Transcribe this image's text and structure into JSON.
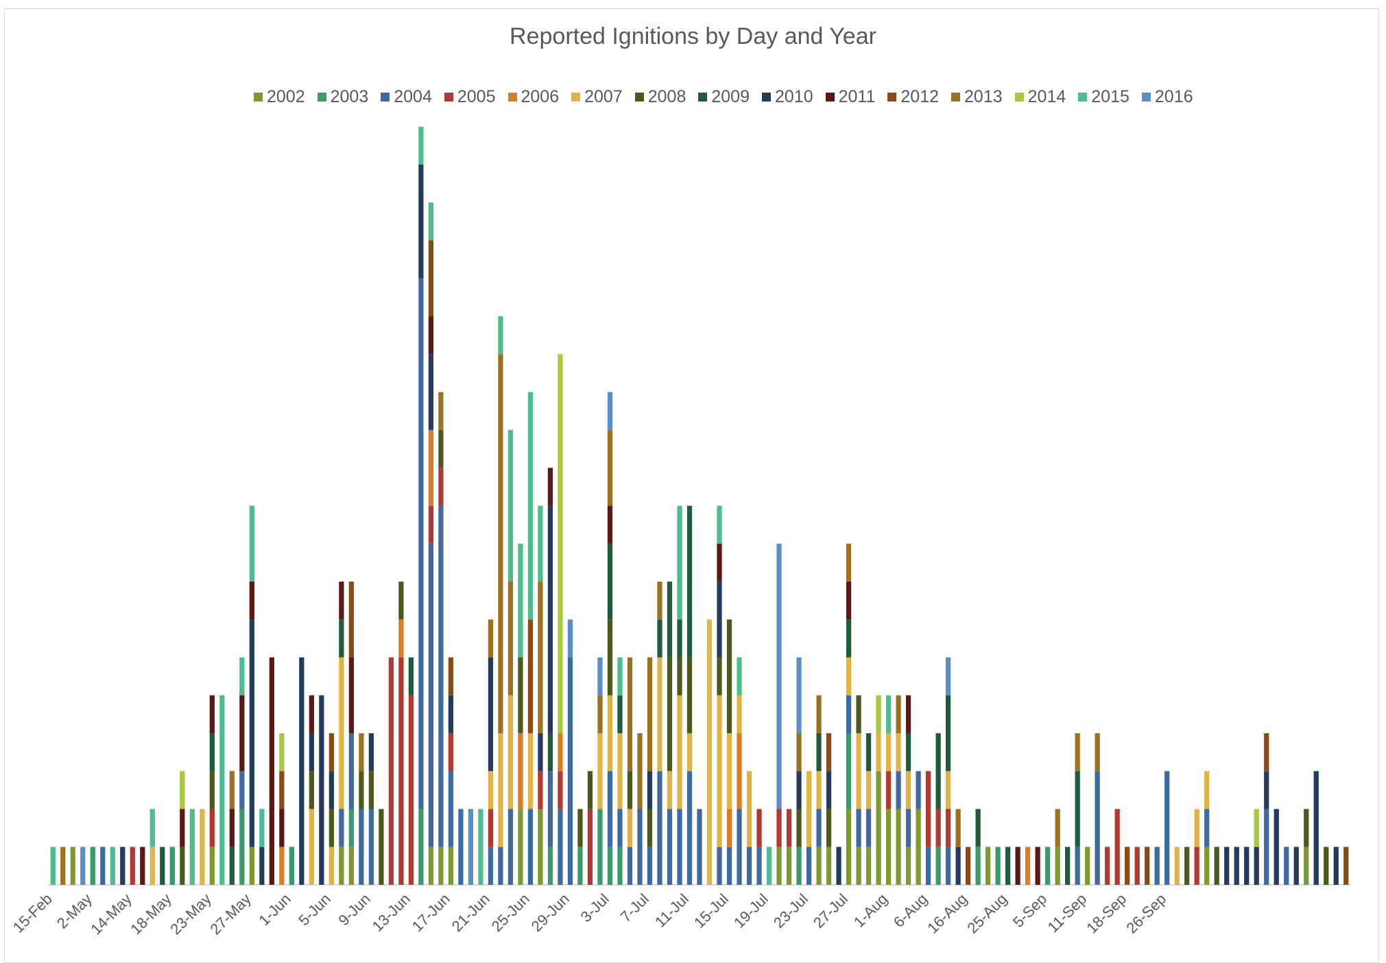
{
  "chart_data": {
    "type": "bar",
    "stacked": true,
    "title": "Reported Ignitions by Day and Year",
    "xlabel": "",
    "ylabel": "",
    "ylim": [
      0,
      19
    ],
    "grid": false,
    "legend_position": "top",
    "tick_labels": [
      "15-Feb",
      "2-May",
      "14-May",
      "18-May",
      "23-May",
      "27-May",
      "1-Jun",
      "5-Jun",
      "9-Jun",
      "13-Jun",
      "17-Jun",
      "21-Jun",
      "25-Jun",
      "29-Jun",
      "3-Jul",
      "7-Jul",
      "11-Jul",
      "15-Jul",
      "19-Jul",
      "23-Jul",
      "27-Jul",
      "1-Aug",
      "6-Aug",
      "16-Aug",
      "25-Aug",
      "5-Sep",
      "11-Sep",
      "18-Sep",
      "26-Sep"
    ],
    "tick_every": 4,
    "series_names": [
      "2002",
      "2003",
      "2004",
      "2005",
      "2006",
      "2007",
      "2008",
      "2009",
      "2010",
      "2011",
      "2012",
      "2013",
      "2014",
      "2015",
      "2016"
    ],
    "colors": [
      "#7e9a2e",
      "#3a9a6c",
      "#3f6aa1",
      "#b03a33",
      "#e07b25",
      "#e0b444",
      "#4b5a1c",
      "#1f5c3f",
      "#243b5e",
      "#5c1717",
      "#8a4b15",
      "#9a7220",
      "#a9c83b",
      "#4dbd8f",
      "#5b8ec9"
    ],
    "bars": [
      [
        [
          13,
          1
        ]
      ],
      [
        [
          11,
          1
        ]
      ],
      [
        [
          0,
          1
        ]
      ],
      [
        [
          14,
          1
        ]
      ],
      [
        [
          1,
          1
        ]
      ],
      [
        [
          2,
          1
        ]
      ],
      [
        [
          13,
          1
        ]
      ],
      [
        [
          8,
          1
        ]
      ],
      [
        [
          3,
          1
        ]
      ],
      [
        [
          9,
          1
        ]
      ],
      [
        [
          5,
          1
        ],
        [
          13,
          1
        ]
      ],
      [
        [
          7,
          1
        ]
      ],
      [
        [
          1,
          1
        ]
      ],
      [
        [
          6,
          1
        ],
        [
          9,
          1
        ],
        [
          12,
          1
        ]
      ],
      [
        [
          13,
          2
        ]
      ],
      [
        [
          5,
          2
        ]
      ],
      [
        [
          0,
          1
        ],
        [
          3,
          1
        ],
        [
          6,
          1
        ],
        [
          7,
          1
        ],
        [
          9,
          1
        ]
      ],
      [
        [
          13,
          5
        ]
      ],
      [
        [
          7,
          1
        ],
        [
          9,
          1
        ],
        [
          11,
          1
        ]
      ],
      [
        [
          1,
          2
        ],
        [
          2,
          1
        ],
        [
          9,
          2
        ],
        [
          13,
          1
        ]
      ],
      [
        [
          0,
          1
        ],
        [
          8,
          6
        ],
        [
          9,
          1
        ],
        [
          13,
          2
        ]
      ],
      [
        [
          8,
          1
        ],
        [
          13,
          1
        ]
      ],
      [
        [
          9,
          6
        ]
      ],
      [
        [
          4,
          1
        ],
        [
          9,
          1
        ],
        [
          10,
          1
        ],
        [
          12,
          1
        ]
      ],
      [
        [
          1,
          1
        ]
      ],
      [
        [
          8,
          6
        ]
      ],
      [
        [
          5,
          2
        ],
        [
          6,
          1
        ],
        [
          8,
          1
        ],
        [
          9,
          1
        ]
      ],
      [
        [
          8,
          5
        ]
      ],
      [
        [
          5,
          1
        ],
        [
          6,
          1
        ],
        [
          8,
          1
        ],
        [
          10,
          1
        ]
      ],
      [
        [
          0,
          1
        ],
        [
          2,
          1
        ],
        [
          5,
          4
        ],
        [
          7,
          1
        ],
        [
          9,
          1
        ]
      ],
      [
        [
          0,
          1
        ],
        [
          1,
          1
        ],
        [
          2,
          2
        ],
        [
          9,
          2
        ],
        [
          10,
          2
        ]
      ],
      [
        [
          2,
          2
        ],
        [
          6,
          1
        ],
        [
          11,
          1
        ]
      ],
      [
        [
          2,
          2
        ],
        [
          6,
          1
        ],
        [
          8,
          1
        ]
      ],
      [
        [
          6,
          2
        ]
      ],
      [
        [
          3,
          6
        ]
      ],
      [
        [
          3,
          6
        ],
        [
          4,
          1
        ],
        [
          6,
          1
        ]
      ],
      [
        [
          3,
          5
        ],
        [
          7,
          1
        ]
      ],
      [
        [
          1,
          2
        ],
        [
          2,
          14
        ],
        [
          8,
          3
        ],
        [
          13,
          1
        ]
      ],
      [
        [
          0,
          1
        ],
        [
          2,
          8
        ],
        [
          3,
          1
        ],
        [
          4,
          2
        ],
        [
          8,
          2
        ],
        [
          9,
          1
        ],
        [
          10,
          2
        ],
        [
          13,
          1
        ]
      ],
      [
        [
          0,
          1
        ],
        [
          2,
          9
        ],
        [
          3,
          1
        ],
        [
          6,
          1
        ],
        [
          11,
          1
        ]
      ],
      [
        [
          0,
          1
        ],
        [
          2,
          2
        ],
        [
          3,
          1
        ],
        [
          8,
          1
        ],
        [
          10,
          1
        ]
      ],
      [
        [
          2,
          2
        ]
      ],
      [
        [
          14,
          2
        ]
      ],
      [
        [
          13,
          2
        ]
      ],
      [
        [
          2,
          1
        ],
        [
          3,
          1
        ],
        [
          5,
          1
        ],
        [
          8,
          3
        ],
        [
          11,
          1
        ]
      ],
      [
        [
          2,
          1
        ],
        [
          5,
          3
        ],
        [
          11,
          10
        ],
        [
          13,
          1
        ]
      ],
      [
        [
          2,
          2
        ],
        [
          5,
          3
        ],
        [
          11,
          3
        ],
        [
          13,
          4
        ]
      ],
      [
        [
          0,
          2
        ],
        [
          4,
          2
        ],
        [
          6,
          2
        ],
        [
          13,
          3
        ]
      ],
      [
        [
          2,
          2
        ],
        [
          5,
          2
        ],
        [
          10,
          3
        ],
        [
          13,
          6
        ]
      ],
      [
        [
          0,
          2
        ],
        [
          3,
          1
        ],
        [
          8,
          1
        ],
        [
          11,
          4
        ],
        [
          13,
          2
        ]
      ],
      [
        [
          1,
          1
        ],
        [
          2,
          2
        ],
        [
          7,
          1
        ],
        [
          8,
          6
        ],
        [
          9,
          1
        ]
      ],
      [
        [
          2,
          2
        ],
        [
          3,
          1
        ],
        [
          4,
          1
        ],
        [
          12,
          10
        ]
      ],
      [
        [
          2,
          6
        ],
        [
          14,
          1
        ]
      ],
      [
        [
          1,
          1
        ],
        [
          6,
          1
        ]
      ],
      [
        [
          3,
          2
        ],
        [
          6,
          1
        ]
      ],
      [
        [
          1,
          2
        ],
        [
          5,
          2
        ],
        [
          11,
          1
        ],
        [
          14,
          1
        ]
      ],
      [
        [
          1,
          1
        ],
        [
          2,
          2
        ],
        [
          5,
          2
        ],
        [
          6,
          2
        ],
        [
          7,
          2
        ],
        [
          9,
          1
        ],
        [
          11,
          2
        ],
        [
          14,
          1
        ]
      ],
      [
        [
          1,
          1
        ],
        [
          2,
          1
        ],
        [
          5,
          2
        ],
        [
          7,
          1
        ],
        [
          13,
          1
        ]
      ],
      [
        [
          2,
          1
        ],
        [
          5,
          1
        ],
        [
          6,
          1
        ],
        [
          11,
          3
        ]
      ],
      [
        [
          2,
          2
        ],
        [
          11,
          2
        ]
      ],
      [
        [
          2,
          1
        ],
        [
          6,
          1
        ],
        [
          8,
          1
        ],
        [
          11,
          3
        ]
      ],
      [
        [
          2,
          3
        ],
        [
          5,
          3
        ],
        [
          7,
          1
        ],
        [
          11,
          1
        ]
      ],
      [
        [
          2,
          2
        ],
        [
          5,
          1
        ],
        [
          6,
          3
        ],
        [
          7,
          2
        ]
      ],
      [
        [
          2,
          2
        ],
        [
          5,
          3
        ],
        [
          6,
          1
        ],
        [
          7,
          1
        ],
        [
          13,
          3
        ]
      ],
      [
        [
          2,
          3
        ],
        [
          5,
          1
        ],
        [
          6,
          2
        ],
        [
          7,
          4
        ]
      ],
      [
        [
          2,
          2
        ]
      ],
      [
        [
          5,
          7
        ]
      ],
      [
        [
          2,
          1
        ],
        [
          5,
          4
        ],
        [
          6,
          1
        ],
        [
          8,
          2
        ],
        [
          9,
          1
        ],
        [
          13,
          1
        ]
      ],
      [
        [
          2,
          1
        ],
        [
          4,
          1
        ],
        [
          5,
          2
        ],
        [
          6,
          3
        ]
      ],
      [
        [
          2,
          2
        ],
        [
          4,
          2
        ],
        [
          5,
          1
        ],
        [
          13,
          1
        ]
      ],
      [
        [
          2,
          1
        ],
        [
          5,
          2
        ]
      ],
      [
        [
          2,
          1
        ],
        [
          3,
          1
        ]
      ],
      [
        [
          13,
          1
        ]
      ],
      [
        [
          0,
          1
        ],
        [
          3,
          1
        ],
        [
          14,
          7
        ]
      ],
      [
        [
          0,
          1
        ],
        [
          3,
          1
        ]
      ],
      [
        [
          1,
          1
        ],
        [
          6,
          1
        ],
        [
          8,
          1
        ],
        [
          11,
          1
        ],
        [
          14,
          2
        ]
      ],
      [
        [
          2,
          1
        ],
        [
          5,
          2
        ]
      ],
      [
        [
          0,
          1
        ],
        [
          2,
          1
        ],
        [
          5,
          1
        ],
        [
          7,
          1
        ],
        [
          11,
          1
        ]
      ],
      [
        [
          0,
          1
        ],
        [
          6,
          1
        ],
        [
          8,
          1
        ],
        [
          10,
          1
        ]
      ],
      [
        [
          8,
          1
        ]
      ],
      [
        [
          0,
          2
        ],
        [
          1,
          2
        ],
        [
          2,
          1
        ],
        [
          5,
          1
        ],
        [
          7,
          1
        ],
        [
          9,
          1
        ],
        [
          11,
          1
        ]
      ],
      [
        [
          0,
          1
        ],
        [
          2,
          1
        ],
        [
          5,
          2
        ],
        [
          6,
          1
        ]
      ],
      [
        [
          0,
          1
        ],
        [
          2,
          1
        ],
        [
          5,
          1
        ],
        [
          7,
          1
        ]
      ],
      [
        [
          0,
          3
        ],
        [
          5,
          1
        ],
        [
          12,
          1
        ]
      ],
      [
        [
          0,
          2
        ],
        [
          3,
          1
        ],
        [
          5,
          1
        ],
        [
          13,
          1
        ]
      ],
      [
        [
          0,
          2
        ],
        [
          2,
          1
        ],
        [
          5,
          1
        ],
        [
          11,
          1
        ]
      ],
      [
        [
          0,
          1
        ],
        [
          2,
          1
        ],
        [
          5,
          1
        ],
        [
          7,
          1
        ],
        [
          9,
          1
        ]
      ],
      [
        [
          0,
          2
        ],
        [
          2,
          1
        ]
      ],
      [
        [
          2,
          1
        ],
        [
          3,
          2
        ]
      ],
      [
        [
          1,
          1
        ],
        [
          3,
          1
        ],
        [
          7,
          2
        ]
      ],
      [
        [
          2,
          1
        ],
        [
          3,
          1
        ],
        [
          5,
          1
        ],
        [
          7,
          2
        ],
        [
          14,
          1
        ]
      ],
      [
        [
          8,
          1
        ],
        [
          11,
          1
        ]
      ],
      [
        [
          10,
          1
        ]
      ],
      [
        [
          1,
          1
        ],
        [
          7,
          1
        ]
      ],
      [
        [
          0,
          1
        ]
      ],
      [
        [
          1,
          1
        ]
      ],
      [
        [
          7,
          1
        ]
      ],
      [
        [
          9,
          1
        ]
      ],
      [
        [
          4,
          1
        ]
      ],
      [
        [
          9,
          1
        ]
      ],
      [
        [
          1,
          1
        ]
      ],
      [
        [
          0,
          1
        ],
        [
          11,
          1
        ]
      ],
      [
        [
          7,
          1
        ]
      ],
      [
        [
          2,
          1
        ],
        [
          7,
          2
        ],
        [
          11,
          1
        ]
      ],
      [
        [
          0,
          1
        ]
      ],
      [
        [
          2,
          3
        ],
        [
          11,
          1
        ]
      ],
      [
        [
          3,
          1
        ]
      ],
      [
        [
          3,
          2
        ]
      ],
      [
        [
          10,
          1
        ]
      ],
      [
        [
          3,
          1
        ]
      ],
      [
        [
          10,
          1
        ]
      ],
      [
        [
          2,
          1
        ]
      ],
      [
        [
          2,
          3
        ]
      ],
      [
        [
          5,
          1
        ]
      ],
      [
        [
          6,
          1
        ]
      ],
      [
        [
          3,
          1
        ],
        [
          5,
          1
        ]
      ],
      [
        [
          0,
          1
        ],
        [
          2,
          1
        ],
        [
          5,
          1
        ]
      ],
      [
        [
          6,
          1
        ]
      ],
      [
        [
          8,
          1
        ]
      ],
      [
        [
          8,
          1
        ]
      ],
      [
        [
          8,
          1
        ]
      ],
      [
        [
          8,
          1
        ],
        [
          12,
          1
        ]
      ],
      [
        [
          2,
          2
        ],
        [
          8,
          1
        ],
        [
          10,
          1
        ]
      ],
      [
        [
          8,
          2
        ]
      ],
      [
        [
          2,
          1
        ]
      ],
      [
        [
          8,
          1
        ]
      ],
      [
        [
          0,
          1
        ],
        [
          6,
          1
        ]
      ],
      [
        [
          8,
          3
        ]
      ],
      [
        [
          6,
          1
        ]
      ],
      [
        [
          8,
          1
        ]
      ],
      [
        [
          10,
          1
        ]
      ]
    ]
  }
}
